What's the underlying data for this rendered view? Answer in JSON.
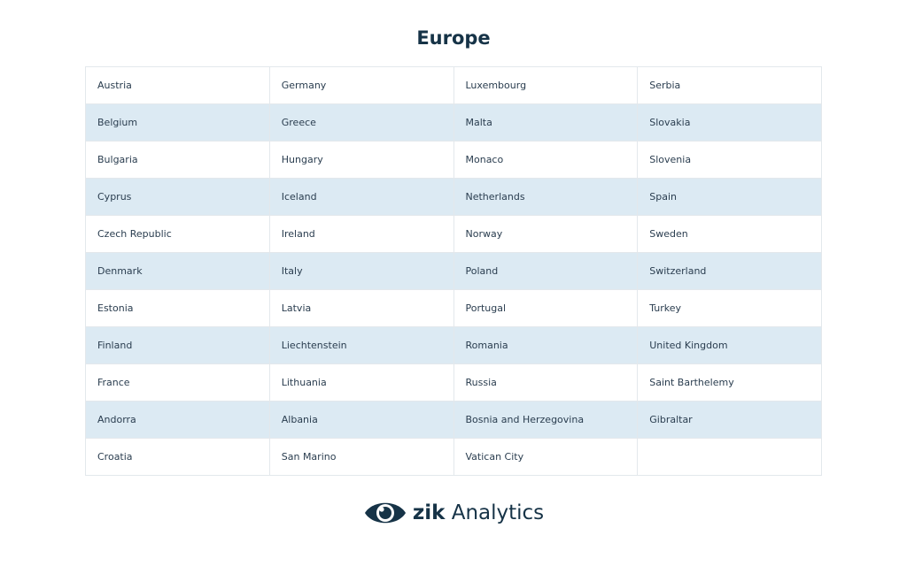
{
  "page": {
    "title": "Europe"
  },
  "colors": {
    "title": "#163347",
    "row_shade": "#dceaf3",
    "border": "#e3e8ec",
    "text": "#2a3d4f",
    "logo": "#163347"
  },
  "table": {
    "rows": [
      [
        "Austria",
        "Germany",
        "Luxembourg",
        "Serbia"
      ],
      [
        "Belgium",
        "Greece",
        "Malta",
        "Slovakia"
      ],
      [
        "Bulgaria",
        "Hungary",
        "Monaco",
        "Slovenia"
      ],
      [
        "Cyprus",
        "Iceland",
        "Netherlands",
        "Spain"
      ],
      [
        "Czech Republic",
        "Ireland",
        "Norway",
        "Sweden"
      ],
      [
        "Denmark",
        "Italy",
        "Poland",
        "Switzerland"
      ],
      [
        "Estonia",
        "Latvia",
        "Portugal",
        "Turkey"
      ],
      [
        "Finland",
        "Liechtenstein",
        "Romania",
        "United Kingdom"
      ],
      [
        "France",
        "Lithuania",
        "Russia",
        "Saint Barthelemy"
      ],
      [
        "Andorra",
        "Albania",
        "Bosnia and Herzegovina",
        "Gibraltar"
      ],
      [
        "Croatia",
        "San Marino",
        "Vatican City",
        ""
      ]
    ]
  },
  "logo": {
    "icon": "eye-icon",
    "brand": "zik",
    "product": "Analytics"
  }
}
